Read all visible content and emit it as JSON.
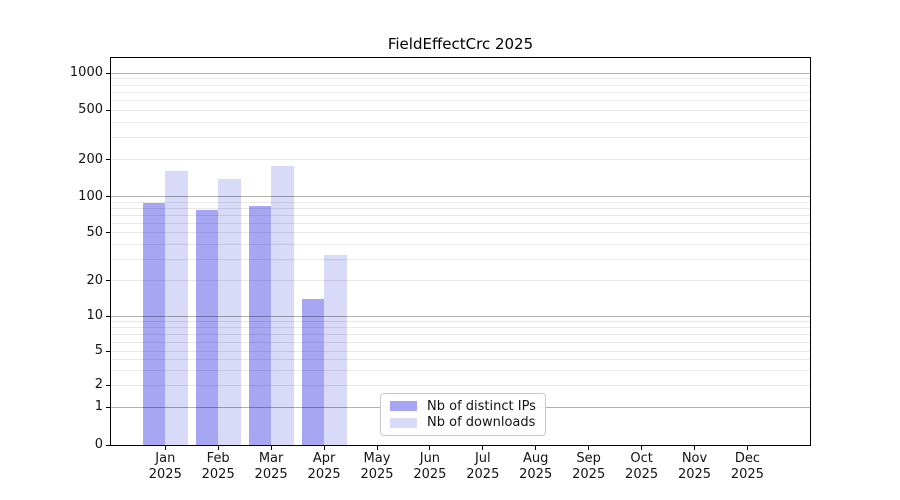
{
  "chart_data": {
    "type": "bar",
    "title": "FieldEffectCrc 2025",
    "year": "2025",
    "categories": [
      "Jan",
      "Feb",
      "Mar",
      "Apr",
      "May",
      "Jun",
      "Jul",
      "Aug",
      "Sep",
      "Oct",
      "Nov",
      "Dec"
    ],
    "series": [
      {
        "name": "Nb of distinct IPs",
        "color": "#a6a6f3",
        "values": [
          89,
          78,
          84,
          14,
          0,
          0,
          0,
          0,
          0,
          0,
          0,
          0
        ]
      },
      {
        "name": "Nb of downloads",
        "color": "#d9d9f8",
        "values": [
          162,
          140,
          178,
          33,
          0,
          0,
          0,
          0,
          0,
          0,
          0,
          0
        ]
      }
    ],
    "y_ticks": [
      0,
      1,
      2,
      5,
      10,
      20,
      50,
      100,
      200,
      500,
      1000
    ],
    "ylim": [
      0,
      1300
    ],
    "yscale": "log-like (symlog)",
    "xlabel": "",
    "ylabel": "",
    "grid": "horizontal major + log minor",
    "legend_position": "bottom-center"
  }
}
